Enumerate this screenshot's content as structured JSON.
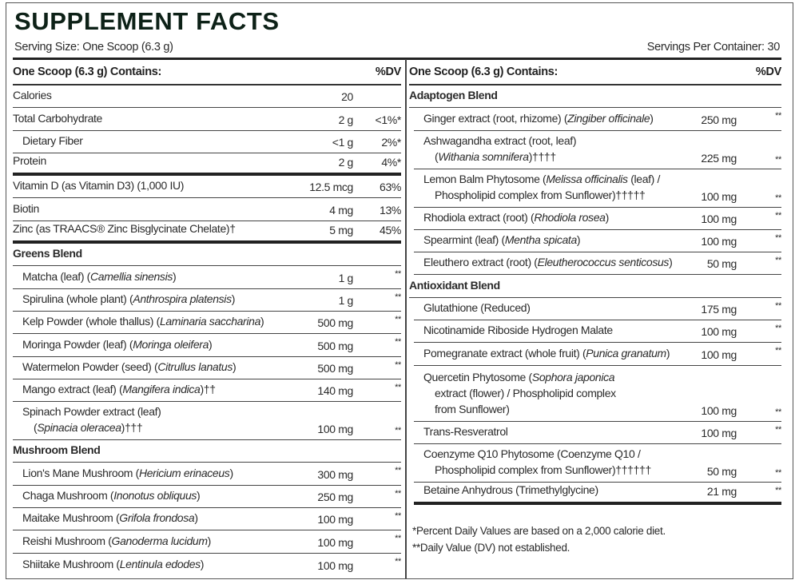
{
  "title": "SUPPLEMENT FACTS",
  "serving_size": "Serving Size: One Scoop (6.3 g)",
  "servings_per_container": "Servings Per Container: 30",
  "title_color": "#0d2117",
  "left": {
    "header": {
      "label": "One Scoop (6.3 g) Contains:",
      "dv": "%DV"
    },
    "rows": [
      {
        "type": "item",
        "lines": [
          [
            {
              "t": "Calories"
            }
          ]
        ],
        "amount": "20",
        "dv": ""
      },
      {
        "type": "item",
        "lines": [
          [
            {
              "t": "Total Carbohydrate"
            }
          ]
        ],
        "amount": "2 g",
        "dv": "<1%*"
      },
      {
        "type": "item",
        "indent": true,
        "lines": [
          [
            {
              "t": "Dietary Fiber"
            }
          ]
        ],
        "amount": "<1 g",
        "dv": "2%*"
      },
      {
        "type": "item",
        "thick": true,
        "lines": [
          [
            {
              "t": "Protein"
            }
          ]
        ],
        "amount": "2 g",
        "dv": "4%*"
      },
      {
        "type": "item",
        "lines": [
          [
            {
              "t": "Vitamin D (as Vitamin D3) (1,000 IU)"
            }
          ]
        ],
        "amount": "12.5 mcg",
        "dv": "63%"
      },
      {
        "type": "item",
        "lines": [
          [
            {
              "t": "Biotin"
            }
          ]
        ],
        "amount": "4 mg",
        "dv": "13%"
      },
      {
        "type": "item",
        "thick": true,
        "lines": [
          [
            {
              "t": "Zinc (as TRAACS® Zinc Bisglycinate Chelate)†"
            }
          ]
        ],
        "amount": "5 mg",
        "dv": "45%"
      },
      {
        "type": "section",
        "lines": [
          [
            {
              "t": "Greens Blend"
            }
          ]
        ]
      },
      {
        "type": "item",
        "indent": true,
        "lines": [
          [
            {
              "t": "Matcha (leaf) ("
            },
            {
              "t": "Camellia sinensis",
              "i": true
            },
            {
              "t": ")"
            }
          ]
        ],
        "amount": "1 g",
        "dv": "**"
      },
      {
        "type": "item",
        "indent": true,
        "lines": [
          [
            {
              "t": "Spirulina (whole plant) ("
            },
            {
              "t": "Anthrospira platensis",
              "i": true
            },
            {
              "t": ")"
            }
          ]
        ],
        "amount": "1 g",
        "dv": "**"
      },
      {
        "type": "item",
        "indent": true,
        "lines": [
          [
            {
              "t": "Kelp Powder (whole thallus) ("
            },
            {
              "t": "Laminaria saccharina",
              "i": true
            },
            {
              "t": ")"
            }
          ]
        ],
        "amount": "500 mg",
        "dv": "**"
      },
      {
        "type": "item",
        "indent": true,
        "lines": [
          [
            {
              "t": "Moringa Powder (leaf) ("
            },
            {
              "t": "Moringa oleifera",
              "i": true
            },
            {
              "t": ")"
            }
          ]
        ],
        "amount": "500 mg",
        "dv": "**"
      },
      {
        "type": "item",
        "indent": true,
        "lines": [
          [
            {
              "t": "Watermelon Powder (seed) ("
            },
            {
              "t": "Citrullus lanatus",
              "i": true
            },
            {
              "t": ")"
            }
          ]
        ],
        "amount": "500 mg",
        "dv": "**"
      },
      {
        "type": "item",
        "indent": true,
        "lines": [
          [
            {
              "t": "Mango extract (leaf) ("
            },
            {
              "t": "Mangifera indica",
              "i": true
            },
            {
              "t": ")††"
            }
          ]
        ],
        "amount": "140 mg",
        "dv": "**"
      },
      {
        "type": "item",
        "indent": true,
        "lines": [
          [
            {
              "t": "Spinach Powder extract (leaf)"
            }
          ],
          [
            {
              "t": "("
            },
            {
              "t": "Spinacia oleracea",
              "i": true
            },
            {
              "t": ")†††"
            }
          ]
        ],
        "amount": "100 mg",
        "dv": "**"
      },
      {
        "type": "section",
        "lines": [
          [
            {
              "t": "Mushroom Blend"
            }
          ]
        ]
      },
      {
        "type": "item",
        "indent": true,
        "lines": [
          [
            {
              "t": "Lion's Mane Mushroom ("
            },
            {
              "t": "Hericium erinaceus",
              "i": true
            },
            {
              "t": ")"
            }
          ]
        ],
        "amount": "300 mg",
        "dv": "**"
      },
      {
        "type": "item",
        "indent": true,
        "lines": [
          [
            {
              "t": "Chaga Mushroom ("
            },
            {
              "t": "Inonotus obliquus",
              "i": true
            },
            {
              "t": ")"
            }
          ]
        ],
        "amount": "250 mg",
        "dv": "**"
      },
      {
        "type": "item",
        "indent": true,
        "lines": [
          [
            {
              "t": "Maitake Mushroom ("
            },
            {
              "t": "Grifola frondosa",
              "i": true
            },
            {
              "t": ")"
            }
          ]
        ],
        "amount": "100 mg",
        "dv": "**"
      },
      {
        "type": "item",
        "indent": true,
        "lines": [
          [
            {
              "t": "Reishi Mushroom ("
            },
            {
              "t": "Ganoderma lucidum",
              "i": true
            },
            {
              "t": ")"
            }
          ]
        ],
        "amount": "100 mg",
        "dv": "**"
      },
      {
        "type": "item",
        "indent": true,
        "last": true,
        "lines": [
          [
            {
              "t": "Shiitake Mushroom ("
            },
            {
              "t": "Lentinula edodes",
              "i": true
            },
            {
              "t": ")"
            }
          ]
        ],
        "amount": "100 mg",
        "dv": "**"
      }
    ]
  },
  "right": {
    "header": {
      "label": "One Scoop (6.3 g) Contains:",
      "dv": "%DV"
    },
    "rows": [
      {
        "type": "section",
        "lines": [
          [
            {
              "t": "Adaptogen Blend"
            }
          ]
        ]
      },
      {
        "type": "item",
        "indent": true,
        "lines": [
          [
            {
              "t": "Ginger extract (root, rhizome) ("
            },
            {
              "t": "Zingiber officinale",
              "i": true
            },
            {
              "t": ")"
            }
          ]
        ],
        "amount": "250 mg",
        "dv": "**"
      },
      {
        "type": "item",
        "indent": true,
        "lines": [
          [
            {
              "t": "Ashwagandha extract (root, leaf)"
            }
          ],
          [
            {
              "t": "("
            },
            {
              "t": "Withania somnifera",
              "i": true
            },
            {
              "t": ")††††"
            }
          ]
        ],
        "amount": "225 mg",
        "dv": "**"
      },
      {
        "type": "item",
        "indent": true,
        "lines": [
          [
            {
              "t": "Lemon Balm Phytosome ("
            },
            {
              "t": "Melissa officinalis",
              "i": true
            },
            {
              "t": " (leaf) /"
            }
          ],
          [
            {
              "t": "Phospholipid complex from Sunflower)†††††"
            }
          ]
        ],
        "amount": "100 mg",
        "dv": "**"
      },
      {
        "type": "item",
        "indent": true,
        "lines": [
          [
            {
              "t": "Rhodiola extract (root) ("
            },
            {
              "t": "Rhodiola rosea",
              "i": true
            },
            {
              "t": ")"
            }
          ]
        ],
        "amount": "100 mg",
        "dv": "**"
      },
      {
        "type": "item",
        "indent": true,
        "lines": [
          [
            {
              "t": "Spearmint (leaf) ("
            },
            {
              "t": "Mentha spicata",
              "i": true
            },
            {
              "t": ")"
            }
          ]
        ],
        "amount": "100 mg",
        "dv": "**"
      },
      {
        "type": "item",
        "indent": true,
        "lines": [
          [
            {
              "t": "Eleuthero extract (root) ("
            },
            {
              "t": "Eleutherococcus senticosus",
              "i": true
            },
            {
              "t": ")"
            }
          ]
        ],
        "amount": "50 mg",
        "dv": "**"
      },
      {
        "type": "section",
        "lines": [
          [
            {
              "t": "Antioxidant Blend"
            }
          ]
        ]
      },
      {
        "type": "item",
        "indent": true,
        "lines": [
          [
            {
              "t": "Glutathione (Reduced)"
            }
          ]
        ],
        "amount": "175 mg",
        "dv": "**"
      },
      {
        "type": "item",
        "indent": true,
        "lines": [
          [
            {
              "t": "Nicotinamide Riboside Hydrogen Malate"
            }
          ]
        ],
        "amount": "100 mg",
        "dv": "**"
      },
      {
        "type": "item",
        "indent": true,
        "lines": [
          [
            {
              "t": "Pomegranate extract (whole fruit) ("
            },
            {
              "t": "Punica granatum",
              "i": true
            },
            {
              "t": ")"
            }
          ]
        ],
        "amount": "100 mg",
        "dv": "**"
      },
      {
        "type": "item",
        "indent": true,
        "lines": [
          [
            {
              "t": "Quercetin Phytosome ("
            },
            {
              "t": "Sophora japonica",
              "i": true
            }
          ],
          [
            {
              "t": "extract (flower) / Phospholipid complex"
            }
          ],
          [
            {
              "t": "from Sunflower)"
            }
          ]
        ],
        "amount": "100 mg",
        "dv": "**"
      },
      {
        "type": "item",
        "indent": true,
        "lines": [
          [
            {
              "t": "Trans-Resveratrol"
            }
          ]
        ],
        "amount": "100 mg",
        "dv": "**"
      },
      {
        "type": "item",
        "indent": true,
        "lines": [
          [
            {
              "t": "Coenzyme Q10 Phytosome (Coenzyme Q10 /"
            }
          ],
          [
            {
              "t": "Phospholipid complex from Sunflower)††††††"
            }
          ]
        ],
        "amount": "50 mg",
        "dv": "**"
      },
      {
        "type": "item",
        "indent": true,
        "thick": true,
        "lines": [
          [
            {
              "t": "Betaine Anhydrous (Trimethylglycine)"
            }
          ]
        ],
        "amount": "21 mg",
        "dv": "**"
      }
    ]
  },
  "footnotes": [
    "*Percent Daily Values are based on a 2,000 calorie diet.",
    "**Daily Value (DV) not established."
  ]
}
